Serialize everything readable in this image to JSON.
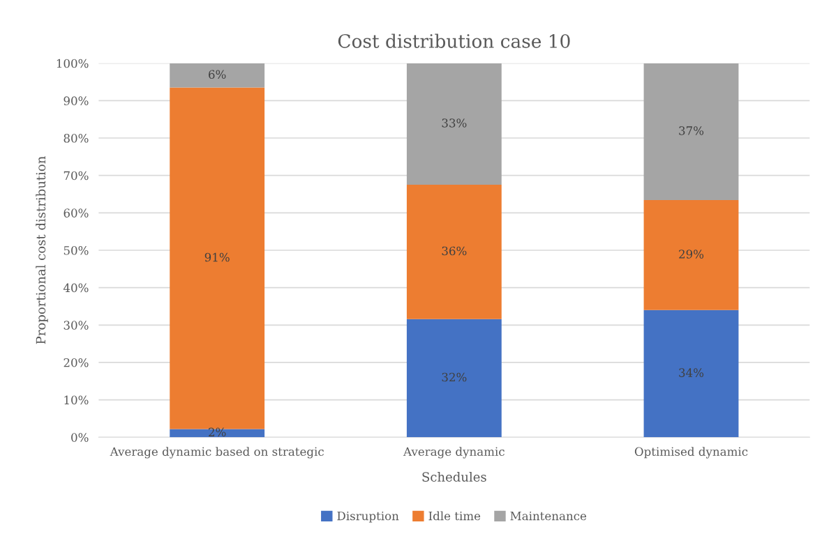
{
  "chart_data": {
    "type": "bar",
    "stacked": true,
    "title": "Cost distribution case 10",
    "xlabel": "Schedules",
    "ylabel": "Proportional cost distribution",
    "categories": [
      "Average dynamic based on strategic",
      "Average dynamic",
      "Optimised dynamic"
    ],
    "series": [
      {
        "name": "Disruption",
        "color": "#4472c4",
        "values": [
          2.2,
          31.6,
          34.0
        ],
        "value_labels": [
          "2%",
          "32%",
          "34%"
        ]
      },
      {
        "name": "Idle time",
        "color": "#ed7d31",
        "values": [
          91.3,
          35.9,
          29.4
        ],
        "value_labels": [
          "91%",
          "36%",
          "29%"
        ]
      },
      {
        "name": "Maintenance",
        "color": "#a5a5a5",
        "values": [
          6.5,
          32.5,
          36.6
        ],
        "value_labels": [
          "6%",
          "33%",
          "37%"
        ]
      }
    ],
    "ylim": [
      0,
      100
    ],
    "yticks": [
      {
        "value": 0,
        "label": "0%"
      },
      {
        "value": 10,
        "label": "10%"
      },
      {
        "value": 20,
        "label": "20%"
      },
      {
        "value": 30,
        "label": "30%"
      },
      {
        "value": 40,
        "label": "40%"
      },
      {
        "value": 50,
        "label": "50%"
      },
      {
        "value": 60,
        "label": "60%"
      },
      {
        "value": 70,
        "label": "70%"
      },
      {
        "value": 80,
        "label": "80%"
      },
      {
        "value": 90,
        "label": "90%"
      },
      {
        "value": 100,
        "label": "100%"
      }
    ],
    "grid": "y",
    "legend": "bottom"
  }
}
